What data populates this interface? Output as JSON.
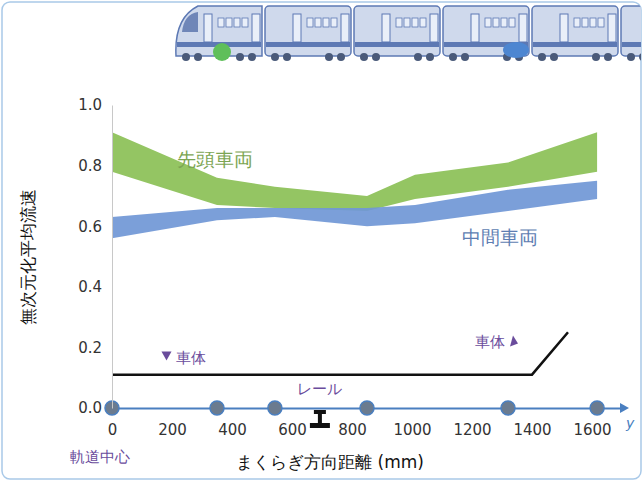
{
  "chart_data": {
    "type": "area",
    "x_label": "まくらぎ方向距離 (mm)",
    "y_label": "無次元化平均流速",
    "x_axis_symbol": "y",
    "origin_label": "軌道中心",
    "xlim": [
      0,
      1700
    ],
    "ylim": [
      0,
      1
    ],
    "xticks": [
      0,
      200,
      400,
      600,
      800,
      1000,
      1200,
      1400,
      1600
    ],
    "yticks": [
      {
        "value": 0,
        "label": "0.0"
      },
      {
        "value": 0.2,
        "label": "0.2"
      },
      {
        "value": 0.4,
        "label": "0.4"
      },
      {
        "value": 0.6,
        "label": "0.6"
      },
      {
        "value": 0.8,
        "label": "0.8"
      },
      {
        "value": 1,
        "label": "1.0"
      }
    ],
    "grid": false,
    "x": [
      0,
      350,
      543,
      850,
      1010,
      1320,
      1617
    ],
    "series": [
      {
        "name": "先頭車両",
        "color": "#94c563",
        "lower": [
          0.78,
          0.67,
          0.66,
          0.65,
          0.69,
          0.73,
          0.78
        ],
        "upper": [
          0.91,
          0.76,
          0.73,
          0.7,
          0.77,
          0.81,
          0.91
        ],
        "label_at": [
          343,
          0.8
        ]
      },
      {
        "name": "中間車両",
        "color": "#7097d6",
        "lower": [
          0.56,
          0.62,
          0.63,
          0.6,
          0.61,
          0.65,
          0.69
        ],
        "upper": [
          0.63,
          0.66,
          0.66,
          0.66,
          0.67,
          0.72,
          0.75
        ],
        "label_at": [
          1293,
          0.54
        ]
      }
    ],
    "measurement_x": [
      0,
      350,
      543,
      850,
      1320,
      1617
    ],
    "body_line": {
      "x": [
        0,
        1400,
        1520
      ],
      "y": [
        0.11,
        0.11,
        0.25
      ]
    },
    "annotations": [
      {
        "text": "車体",
        "x": 165,
        "y": 0.15,
        "marker": "triangle-down"
      },
      {
        "text": "車体",
        "x": 1210,
        "y": 0.2,
        "marker": "triangle-up"
      },
      {
        "text": "レール",
        "x": 693,
        "y": 0.045
      }
    ]
  }
}
